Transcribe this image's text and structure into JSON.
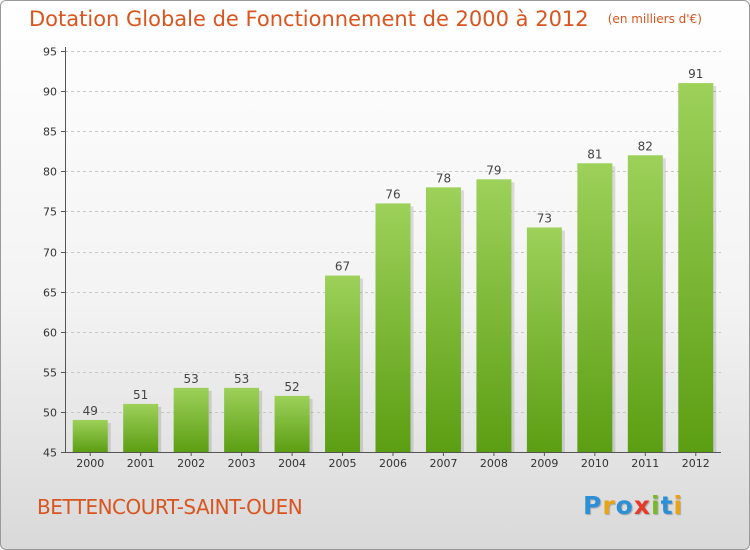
{
  "title": "Dotation Globale de Fonctionnement de 2000 à 2012",
  "unit_note": "(en milliers d'€)",
  "commune": "BETTENCOURT-SAINT-OUEN",
  "logo": {
    "letters": [
      "P",
      "r",
      "o",
      "x",
      "i",
      "t",
      "i"
    ],
    "colors": [
      "#2d8fd6",
      "#e8a317",
      "#2d8fd6",
      "#e53a2a",
      "#7ab82a",
      "#2d8fd6",
      "#e8a317"
    ]
  },
  "colors": {
    "bar_top": "#9dd15a",
    "bar_bottom": "#5c9e13",
    "text_accent": "#d9541e"
  },
  "chart_data": {
    "type": "bar",
    "title": "Dotation Globale de Fonctionnement de 2000 à 2012",
    "categories": [
      "2000",
      "2001",
      "2002",
      "2003",
      "2004",
      "2005",
      "2006",
      "2007",
      "2008",
      "2009",
      "2010",
      "2011",
      "2012"
    ],
    "values": [
      49,
      51,
      53,
      53,
      52,
      67,
      76,
      78,
      79,
      73,
      81,
      82,
      91
    ],
    "ylim": [
      45,
      95
    ],
    "yticks": [
      45,
      50,
      55,
      60,
      65,
      70,
      75,
      80,
      85,
      90,
      95
    ],
    "grid": true
  }
}
